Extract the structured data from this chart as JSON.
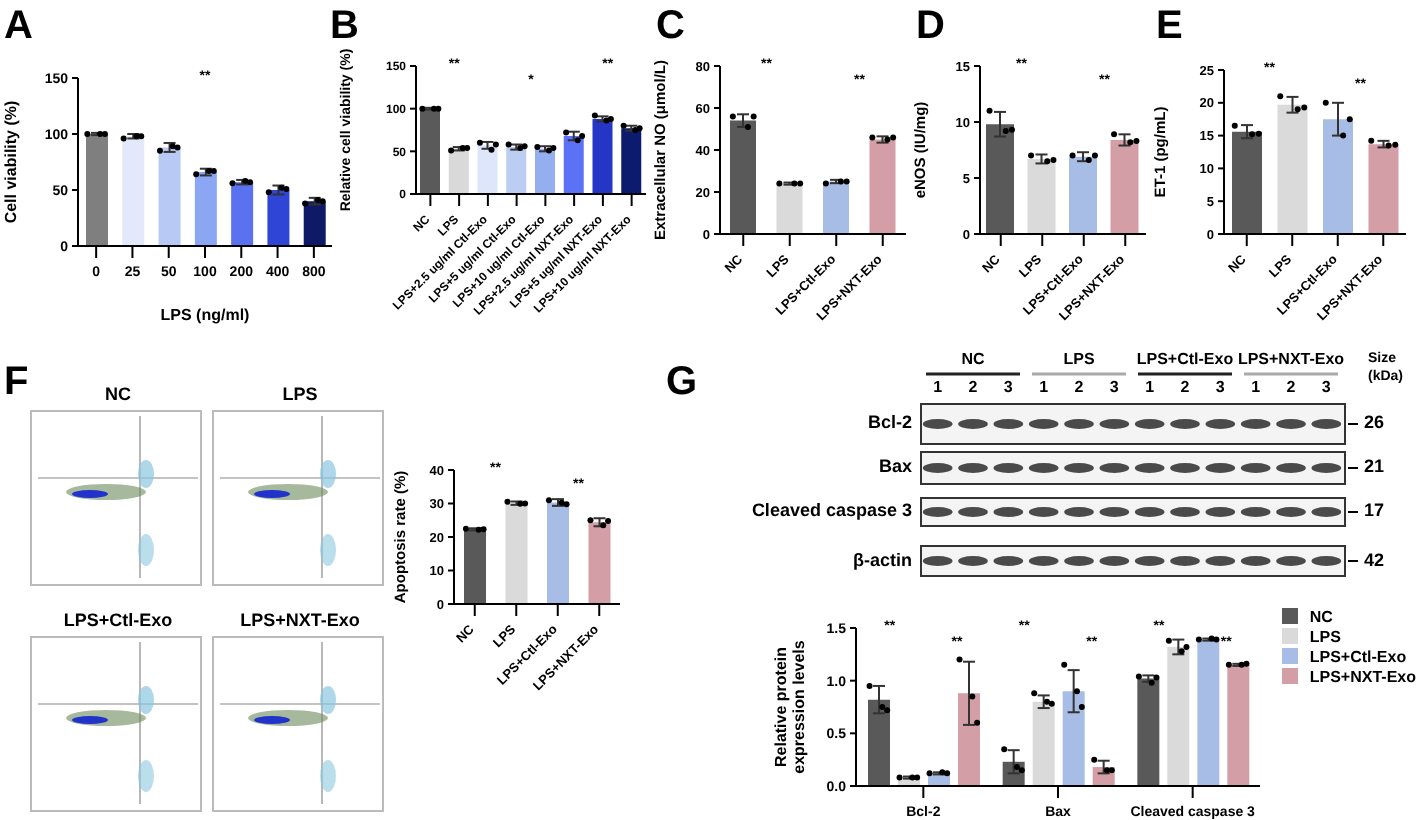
{
  "chart_data": [
    {
      "type": "bar",
      "title": "A",
      "xlabel": "LPS (ng/ml)",
      "ylabel": "Cell viability (%)",
      "categories": [
        "0",
        "25",
        "50",
        "100",
        "200",
        "400",
        "800"
      ],
      "ylim": [
        0,
        150
      ],
      "yticks": [
        0,
        50,
        100,
        150
      ],
      "annotations": [
        "**"
      ],
      "series": [
        {
          "type": "bar",
          "colors": [
            "#7f7f7f",
            "#e3e9fb",
            "#b7c9f4",
            "#8ba6f2",
            "#5b72f0",
            "#2f45d6",
            "#0e1a66"
          ],
          "values": [
            100,
            98,
            88,
            66,
            57,
            50,
            40
          ],
          "errors": [
            1,
            2,
            4,
            3,
            2,
            4,
            3
          ]
        },
        {
          "type": "scatter",
          "color": "#000000",
          "x": [
            "0",
            "0",
            "0",
            "25",
            "25",
            "25",
            "50",
            "50",
            "50",
            "100",
            "100",
            "100",
            "200",
            "200",
            "200",
            "400",
            "400",
            "400",
            "800",
            "800",
            "800"
          ],
          "values": [
            100,
            100,
            100,
            96,
            98,
            98,
            85,
            89,
            88,
            64,
            67,
            67,
            56,
            58,
            57,
            48,
            52,
            51,
            38,
            41,
            40
          ]
        }
      ]
    },
    {
      "type": "bar",
      "title": "B",
      "ylabel": "Relative cell viability (%)",
      "categories": [
        "NC",
        "LPS",
        "LPS+2.5 ug/ml Ctl-Exo",
        "LPS+5 ug/ml Ctl-Exo",
        "LPS+10 ug/ml Ctl-Exo",
        "LPS+2.5 ug/ml NXT-Exo",
        "LPS+5 ug/ml NXT-Exo",
        "LPS+10 ug/ml NXT-Exo"
      ],
      "ylim": [
        0,
        150
      ],
      "yticks": [
        0,
        50,
        100,
        150
      ],
      "annotations": [
        "**",
        "*",
        "**"
      ],
      "series": [
        {
          "type": "bar",
          "colors": [
            "#5a5a5a",
            "#d9d9d9",
            "#dde6fa",
            "#bccdf4",
            "#94aff0",
            "#5c72f6",
            "#2535c6",
            "#0d1b6e"
          ],
          "values": [
            100,
            53,
            57,
            55,
            53,
            68,
            88,
            77
          ],
          "errors": [
            1,
            2,
            4,
            3,
            3,
            5,
            3,
            3
          ]
        },
        {
          "type": "scatter",
          "color": "#000000",
          "x": [
            "NC",
            "NC",
            "NC",
            "LPS",
            "LPS",
            "LPS",
            "LPS+2.5 ug/ml Ctl-Exo",
            "LPS+2.5 ug/ml Ctl-Exo",
            "LPS+2.5 ug/ml Ctl-Exo",
            "LPS+5 ug/ml Ctl-Exo",
            "LPS+5 ug/ml Ctl-Exo",
            "LPS+5 ug/ml Ctl-Exo",
            "LPS+10 ug/ml Ctl-Exo",
            "LPS+10 ug/ml Ctl-Exo",
            "LPS+10 ug/ml Ctl-Exo",
            "LPS+2.5 ug/ml NXT-Exo",
            "LPS+2.5 ug/ml NXT-Exo",
            "LPS+2.5 ug/ml NXT-Exo",
            "LPS+5 ug/ml NXT-Exo",
            "LPS+5 ug/ml NXT-Exo",
            "LPS+5 ug/ml NXT-Exo",
            "LPS+10 ug/ml NXT-Exo",
            "LPS+10 ug/ml NXT-Exo",
            "LPS+10 ug/ml NXT-Exo"
          ],
          "values": [
            100,
            100,
            100,
            51,
            54,
            54,
            60,
            52,
            58,
            58,
            54,
            56,
            55,
            51,
            54,
            72,
            63,
            68,
            92,
            86,
            88,
            80,
            75,
            77
          ]
        }
      ]
    },
    {
      "type": "bar",
      "title": "C",
      "ylabel": "Extracellular NO (μmol/L)",
      "categories": [
        "NC",
        "LPS",
        "LPS+Ctl-Exo",
        "LPS+NXT-Exo"
      ],
      "ylim": [
        0,
        80
      ],
      "yticks": [
        0,
        20,
        40,
        60,
        80
      ],
      "annotations": [
        "**",
        "**"
      ],
      "series": [
        {
          "type": "bar",
          "colors": [
            "#595959",
            "#dadada",
            "#a7bde6",
            "#d49ea7"
          ],
          "values": [
            54,
            24,
            25,
            45
          ],
          "errors": [
            3,
            0.5,
            0.8,
            1.5
          ]
        },
        {
          "type": "scatter",
          "color": "#000000",
          "x": [
            "NC",
            "NC",
            "NC",
            "LPS",
            "LPS",
            "LPS",
            "LPS+Ctl-Exo",
            "LPS+Ctl-Exo",
            "LPS+Ctl-Exo",
            "LPS+NXT-Exo",
            "LPS+NXT-Exo",
            "LPS+NXT-Exo"
          ],
          "values": [
            56,
            51,
            56,
            24,
            24,
            24,
            24,
            25,
            25,
            46,
            45,
            46
          ]
        }
      ]
    },
    {
      "type": "bar",
      "title": "D",
      "ylabel": "eNOS (IU/mg)",
      "categories": [
        "NC",
        "LPS",
        "LPS+Ctl-Exo",
        "LPS+NXT-Exo"
      ],
      "ylim": [
        0,
        15
      ],
      "yticks": [
        0,
        5,
        10,
        15
      ],
      "annotations": [
        "**",
        "**"
      ],
      "series": [
        {
          "type": "bar",
          "colors": [
            "#595959",
            "#dadada",
            "#a7bde6",
            "#d49ea7"
          ],
          "values": [
            9.8,
            6.7,
            6.9,
            8.4
          ],
          "errors": [
            1.1,
            0.4,
            0.4,
            0.5
          ]
        },
        {
          "type": "scatter",
          "color": "#000000",
          "x": [
            "NC",
            "NC",
            "NC",
            "LPS",
            "LPS",
            "LPS",
            "LPS+Ctl-Exo",
            "LPS+Ctl-Exo",
            "LPS+Ctl-Exo",
            "LPS+NXT-Exo",
            "LPS+NXT-Exo",
            "LPS+NXT-Exo"
          ],
          "values": [
            11,
            9.2,
            9.3,
            7,
            6.5,
            6.6,
            7,
            6.6,
            7,
            8.9,
            8.2,
            8.3
          ]
        }
      ]
    },
    {
      "type": "bar",
      "title": "E",
      "ylabel": "ET-1 (pg/mL)",
      "categories": [
        "NC",
        "LPS",
        "LPS+Ctl-Exo",
        "LPS+NXT-Exo"
      ],
      "ylim": [
        0,
        25
      ],
      "yticks": [
        0,
        5,
        10,
        15,
        20,
        25
      ],
      "annotations": [
        "**",
        "**"
      ],
      "series": [
        {
          "type": "bar",
          "colors": [
            "#595959",
            "#dadada",
            "#a7bde6",
            "#d49ea7"
          ],
          "values": [
            15.6,
            19.7,
            17.5,
            13.7
          ],
          "errors": [
            1,
            1.2,
            2.5,
            0.5
          ]
        },
        {
          "type": "scatter",
          "color": "#000000",
          "x": [
            "NC",
            "NC",
            "NC",
            "LPS",
            "LPS",
            "LPS",
            "LPS+Ctl-Exo",
            "LPS+Ctl-Exo",
            "LPS+Ctl-Exo",
            "LPS+NXT-Exo",
            "LPS+NXT-Exo",
            "LPS+NXT-Exo"
          ],
          "values": [
            16.5,
            15.2,
            15.3,
            21,
            19,
            19.3,
            20,
            15,
            17.5,
            14.2,
            13.5,
            13.6
          ]
        }
      ]
    },
    {
      "type": "other",
      "title": "F",
      "annotations": [
        "NC",
        "LPS",
        "LPS+Ctl-Exo",
        "LPS+NXT-Exo"
      ]
    },
    {
      "type": "bar",
      "ylabel": "Apoptosis rate (%)",
      "categories": [
        "NC",
        "LPS",
        "LPS+Ctl-Exo",
        "LPS+NXT-Exo"
      ],
      "ylim": [
        0,
        40
      ],
      "yticks": [
        0,
        10,
        20,
        30,
        40
      ],
      "annotations": [
        "**",
        "**"
      ],
      "series": [
        {
          "type": "bar",
          "colors": [
            "#595959",
            "#dadada",
            "#a7bde6",
            "#d49ea7"
          ],
          "values": [
            22.3,
            30.1,
            30.3,
            24.4
          ],
          "errors": [
            0.3,
            0.5,
            1,
            1.2
          ]
        },
        {
          "type": "scatter",
          "color": "#000000",
          "x": [
            "NC",
            "NC",
            "NC",
            "LPS",
            "LPS",
            "LPS",
            "LPS+Ctl-Exo",
            "LPS+Ctl-Exo",
            "LPS+Ctl-Exo",
            "LPS+NXT-Exo",
            "LPS+NXT-Exo",
            "LPS+NXT-Exo"
          ],
          "values": [
            22.5,
            22.2,
            22.3,
            30.5,
            29.9,
            30,
            31,
            30.2,
            29.8,
            25,
            23.5,
            24.8
          ]
        }
      ]
    },
    {
      "type": "other",
      "title": "G",
      "annotations": [
        "NC",
        "LPS",
        "LPS+Ctl-Exo",
        "LPS+NXT-Exo",
        "1",
        "2",
        "3",
        "1",
        "2",
        "3",
        "1",
        "2",
        "3",
        "1",
        "2",
        "3",
        "Bcl-2",
        "Bax",
        "Cleaved caspase 3",
        "β-actin",
        "26",
        "21",
        "17",
        "42",
        "Size",
        "(kDa)"
      ]
    },
    {
      "type": "bar",
      "ylabel": "Relative protein expression levels",
      "categories": [
        "Bcl-2",
        "Bax",
        "Cleaved caspase 3"
      ],
      "ylim": [
        0,
        1.5
      ],
      "yticks": [
        {
          "value": 0,
          "label": "0.0"
        },
        {
          "value": 0.5,
          "label": "0.5"
        },
        {
          "value": 1,
          "label": "1.0"
        },
        {
          "value": 1.5,
          "label": "1.5"
        }
      ],
      "legend": "top right",
      "annotations": [
        "**",
        "**",
        "**",
        "**",
        "**",
        "**"
      ],
      "series": [
        {
          "type": "bar",
          "name": "NC",
          "color": "#595959",
          "values": [
            0.82,
            0.23,
            1.02
          ],
          "errors": [
            0.13,
            0.11,
            0.03
          ]
        },
        {
          "type": "bar",
          "name": "LPS",
          "color": "#dadada",
          "values": [
            0.08,
            0.8,
            1.32
          ],
          "errors": [
            0.01,
            0.06,
            0.07
          ]
        },
        {
          "type": "bar",
          "name": "LPS+Ctl-Exo",
          "color": "#a7bde6",
          "values": [
            0.12,
            0.9,
            1.39
          ],
          "errors": [
            0.01,
            0.2,
            0.01
          ]
        },
        {
          "type": "bar",
          "name": "LPS+NXT-Exo",
          "color": "#d49ea7",
          "values": [
            0.88,
            0.18,
            1.15
          ],
          "errors": [
            0.3,
            0.06,
            0.01
          ]
        },
        {
          "type": "scatter",
          "color": "#000000",
          "x": [
            "Bcl-2",
            "Bcl-2",
            "Bcl-2",
            "Bax",
            "Bax",
            "Bax",
            "Cleaved caspase 3",
            "Cleaved caspase 3",
            "Cleaved caspase 3"
          ],
          "values": [
            0.95,
            0.75,
            0.72,
            0.35,
            0.18,
            0.15,
            1.04,
            0.98,
            1.03
          ]
        },
        {
          "type": "scatter",
          "color": "#000000",
          "x": [
            "Bcl-2",
            "Bcl-2",
            "Bcl-2",
            "Bax",
            "Bax",
            "Bax",
            "Cleaved caspase 3",
            "Cleaved caspase 3",
            "Cleaved caspase 3"
          ],
          "values": [
            0.08,
            0.08,
            0.08,
            0.88,
            0.8,
            0.78,
            1.38,
            1.28,
            1.32
          ]
        },
        {
          "type": "scatter",
          "color": "#000000",
          "x": [
            "Bcl-2",
            "Bcl-2",
            "Bcl-2",
            "Bax",
            "Bax",
            "Bax",
            "Cleaved caspase 3",
            "Cleaved caspase 3",
            "Cleaved caspase 3"
          ],
          "values": [
            0.12,
            0.13,
            0.12,
            1.15,
            0.9,
            0.75,
            1.39,
            1.4,
            1.39
          ]
        },
        {
          "type": "scatter",
          "color": "#000000",
          "x": [
            "Bcl-2",
            "Bcl-2",
            "Bcl-2",
            "Bax",
            "Bax",
            "Bax",
            "Cleaved caspase 3",
            "Cleaved caspase 3",
            "Cleaved caspase 3"
          ],
          "values": [
            1.2,
            0.85,
            0.6,
            0.25,
            0.15,
            0.15,
            1.15,
            1.15,
            1.16
          ]
        }
      ]
    }
  ]
}
